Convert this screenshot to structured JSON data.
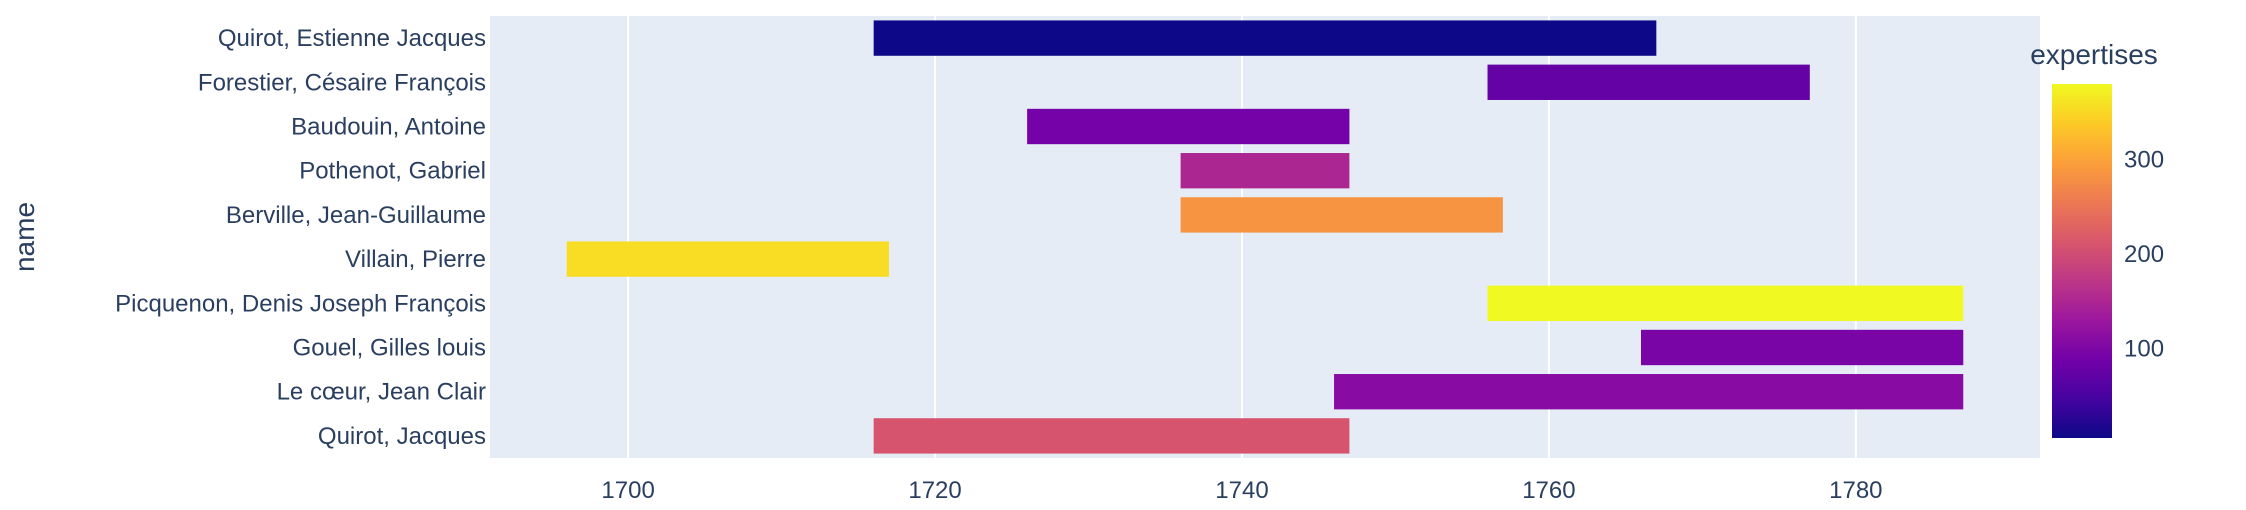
{
  "chart_data": {
    "type": "timeline",
    "ylabel": "name",
    "xlabel": "",
    "xlim": [
      1691,
      1792
    ],
    "xticks": [
      1700,
      1720,
      1740,
      1760,
      1780
    ],
    "rows": [
      {
        "name": "Quirot, Estienne Jacques",
        "start": 1716,
        "end": 1767,
        "expertises": 5
      },
      {
        "name": "Forestier, Césaire François",
        "start": 1756,
        "end": 1777,
        "expertises": 75
      },
      {
        "name": "Baudouin, Antoine",
        "start": 1726,
        "end": 1747,
        "expertises": 90
      },
      {
        "name": "Pothenot, Gabriel",
        "start": 1736,
        "end": 1747,
        "expertises": 150
      },
      {
        "name": "Berville, Jean-Guillaume",
        "start": 1736,
        "end": 1757,
        "expertises": 285
      },
      {
        "name": "Villain, Pierre",
        "start": 1696,
        "end": 1717,
        "expertises": 355
      },
      {
        "name": "Picquenon, Denis Joseph François",
        "start": 1756,
        "end": 1787,
        "expertises": 380
      },
      {
        "name": "Gouel, Gilles louis",
        "start": 1766,
        "end": 1787,
        "expertises": 95
      },
      {
        "name": "Le cœur, Jean Clair",
        "start": 1746,
        "end": 1787,
        "expertises": 110
      },
      {
        "name": "Quirot, Jacques",
        "start": 1716,
        "end": 1747,
        "expertises": 210
      }
    ],
    "colorbar": {
      "title": "expertises",
      "range": [
        5,
        380
      ],
      "ticks": [
        100,
        200,
        300
      ],
      "colorscale": [
        "#0d0887",
        "#46039f",
        "#7201a8",
        "#9c179e",
        "#bd3786",
        "#d8576b",
        "#ed7953",
        "#fb9f3a",
        "#fdca26",
        "#f0f921"
      ]
    },
    "plot_bgcolor": "#e5ecf6",
    "grid": true
  }
}
